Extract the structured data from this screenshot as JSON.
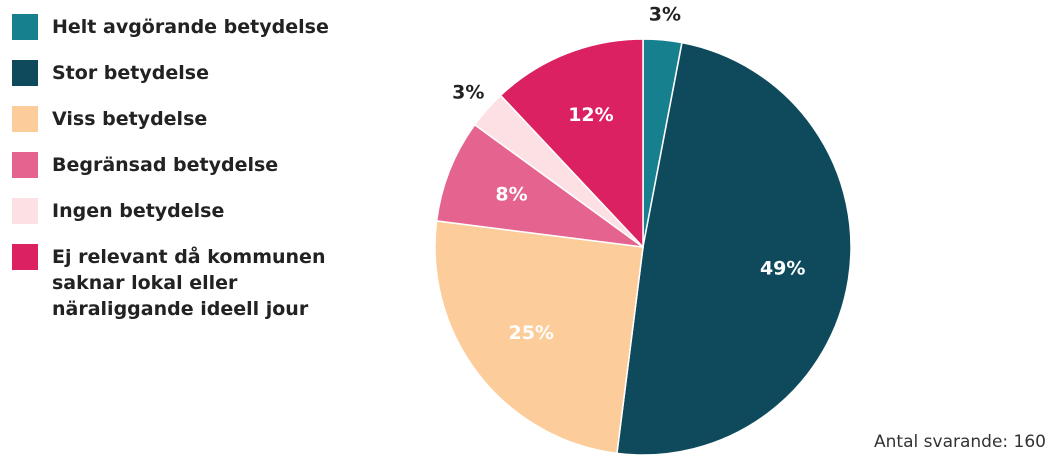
{
  "chart_data": {
    "type": "pie",
    "categories": [
      "Helt avgörande betydelse",
      "Stor betydelse",
      "Viss betydelse",
      "Begränsad betydelse",
      "Ingen betydelse",
      "Ej relevant då kommunen saknar lokal eller näraliggande ideell jour"
    ],
    "values": [
      3,
      49,
      25,
      8,
      3,
      12
    ],
    "value_labels": [
      "3%",
      "49%",
      "25%",
      "8%",
      "3%",
      "12%"
    ],
    "colors": [
      "#17808f",
      "#0f4a5c",
      "#fccd9a",
      "#e5648f",
      "#fde0e3",
      "#dc2163"
    ],
    "note": "Antal svarande: 160"
  }
}
